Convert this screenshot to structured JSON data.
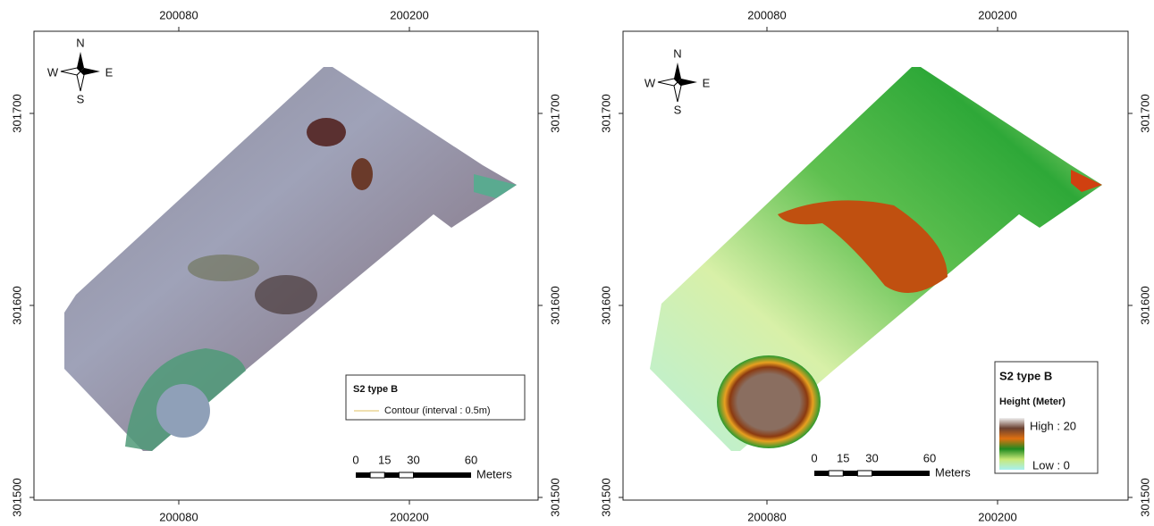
{
  "panels": [
    {
      "x_ticks": [
        200080,
        200200
      ],
      "y_ticks": [
        301700,
        301600,
        301500
      ],
      "compass": {
        "n": "N",
        "s": "S",
        "w": "W",
        "e": "E"
      },
      "legend": {
        "title": "S2 type B",
        "items": [
          "Contour (interval : 0.5m)"
        ]
      },
      "scale_bar": {
        "labels": [
          0,
          15,
          30,
          60
        ],
        "unit": "Meters"
      }
    },
    {
      "x_ticks": [
        200080,
        200200
      ],
      "y_ticks": [
        301700,
        301600,
        301500
      ],
      "compass": {
        "n": "N",
        "s": "S",
        "w": "W",
        "e": "E"
      },
      "legend": {
        "title": "S2 type B",
        "subtitle": "Height (Meter)",
        "high": "High : 20",
        "low": "Low : 0"
      },
      "scale_bar": {
        "labels": [
          0,
          15,
          30,
          60
        ],
        "unit": "Meters"
      }
    }
  ]
}
